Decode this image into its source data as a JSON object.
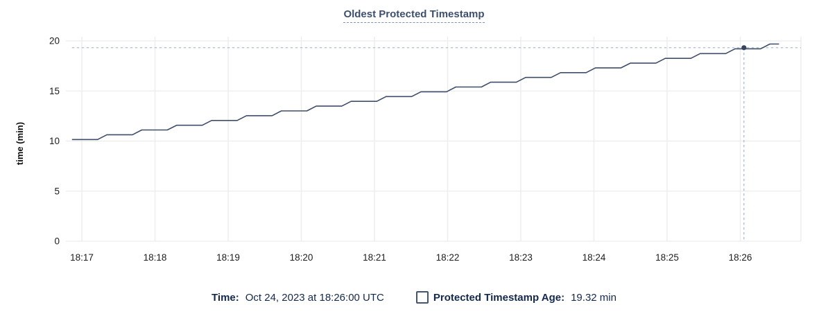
{
  "chart_data": {
    "type": "line",
    "title": "Oldest Protected Timestamp",
    "xlabel": "",
    "ylabel": "time (min)",
    "ylim": [
      0,
      20
    ],
    "yticks": [
      0,
      5,
      10,
      15,
      20
    ],
    "xtick_labels": [
      "18:17",
      "18:18",
      "18:19",
      "18:20",
      "18:21",
      "18:22",
      "18:23",
      "18:24",
      "18:25",
      "18:26"
    ],
    "xtick_positions": [
      0,
      1,
      2,
      3,
      4,
      5,
      6,
      7,
      8,
      9
    ],
    "x_domain": [
      -0.26,
      9.83
    ],
    "grid": true,
    "legend_position": "bottom",
    "series": [
      {
        "name": "Protected Timestamp Age",
        "unit": "min",
        "points": [
          [
            -0.135,
            10.15
          ],
          [
            0.215,
            10.15
          ],
          [
            0.342,
            10.627
          ],
          [
            0.692,
            10.627
          ],
          [
            0.819,
            11.104
          ],
          [
            1.169,
            11.104
          ],
          [
            1.296,
            11.581
          ],
          [
            1.646,
            11.581
          ],
          [
            1.773,
            12.058
          ],
          [
            2.123,
            12.058
          ],
          [
            2.25,
            12.535
          ],
          [
            2.6,
            12.535
          ],
          [
            2.727,
            13.012
          ],
          [
            3.077,
            13.012
          ],
          [
            3.204,
            13.489
          ],
          [
            3.554,
            13.489
          ],
          [
            3.681,
            13.966
          ],
          [
            4.031,
            13.966
          ],
          [
            4.158,
            14.443
          ],
          [
            4.508,
            14.443
          ],
          [
            4.635,
            14.92
          ],
          [
            4.985,
            14.92
          ],
          [
            5.112,
            15.397
          ],
          [
            5.462,
            15.397
          ],
          [
            5.589,
            15.874
          ],
          [
            5.939,
            15.874
          ],
          [
            6.066,
            16.351
          ],
          [
            6.416,
            16.351
          ],
          [
            6.543,
            16.828
          ],
          [
            6.893,
            16.828
          ],
          [
            7.02,
            17.305
          ],
          [
            7.37,
            17.305
          ],
          [
            7.497,
            17.782
          ],
          [
            7.847,
            17.782
          ],
          [
            7.974,
            18.259
          ],
          [
            8.324,
            18.259
          ],
          [
            8.451,
            18.736
          ],
          [
            8.801,
            18.736
          ],
          [
            8.928,
            19.213
          ],
          [
            9.278,
            19.213
          ],
          [
            9.405,
            19.69
          ],
          [
            9.53,
            19.69
          ]
        ]
      }
    ],
    "crosshair": {
      "x": 9.05,
      "value": 19.32
    },
    "colors": {
      "series_line": "#3e4d68",
      "hover_dot": "#36455e",
      "crosshair": "#a5b5c1",
      "gridline": "#ececec",
      "title_text": "#3d4f6e",
      "legend_text": "#13294b"
    }
  },
  "legend": {
    "time_label": "Time:",
    "time_value": "Oct 24, 2023 at 18:26:00 UTC",
    "series_label": "Protected Timestamp Age:",
    "series_value": "19.32 min",
    "series_checkbox_icon": "checkbox-unchecked"
  }
}
